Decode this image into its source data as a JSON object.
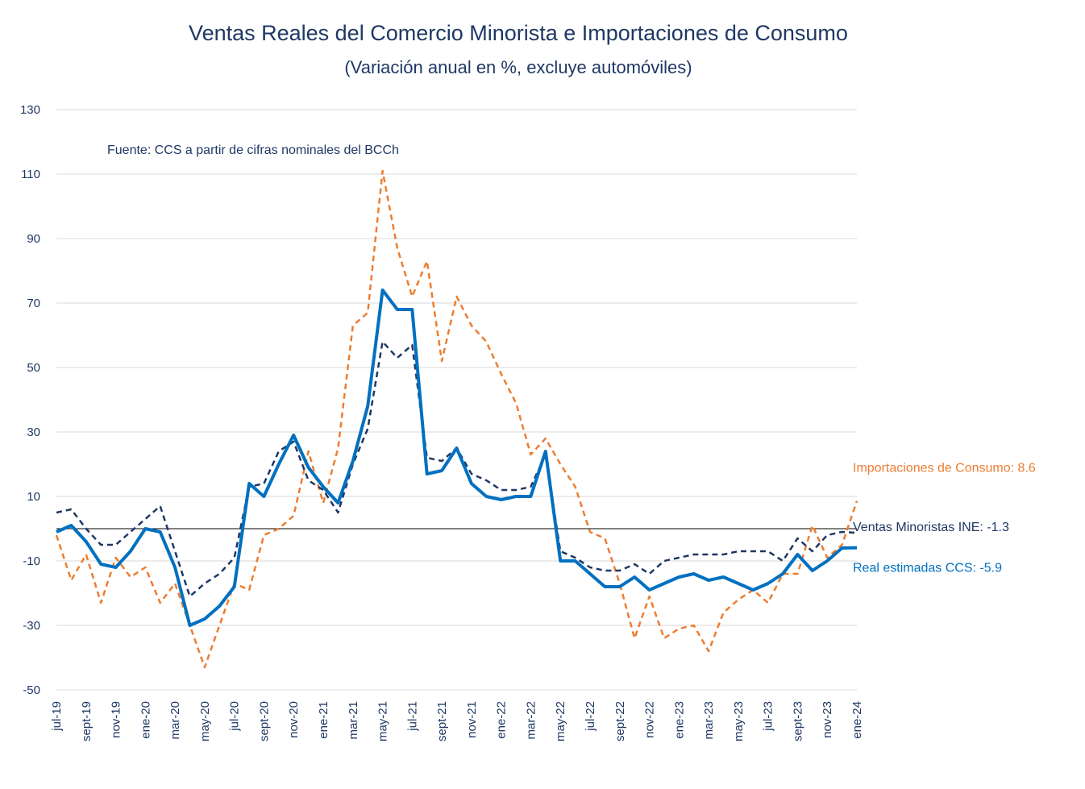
{
  "chart_data": {
    "type": "line",
    "title": "Ventas Reales del Comercio Minorista e Importaciones de Consumo",
    "subtitle": "(Variación anual en %, excluye automóviles)",
    "note": "Fuente: CCS a partir de cifras nominales del BCCh",
    "ylim": [
      -50,
      130
    ],
    "yticks": [
      "130",
      "110",
      "90",
      "70",
      "50",
      "30",
      "10",
      "-10",
      "-30",
      "-50"
    ],
    "ytick_values": [
      130,
      110,
      90,
      70,
      50,
      30,
      10,
      -10,
      -30,
      -50
    ],
    "grid": true,
    "categories": [
      "jul-19",
      "ago-19",
      "sept-19",
      "oct-19",
      "nov-19",
      "dic-19",
      "ene-20",
      "feb-20",
      "mar-20",
      "abr-20",
      "may-20",
      "jun-20",
      "jul-20",
      "ago-20",
      "sept-20",
      "oct-20",
      "nov-20",
      "dic-20",
      "ene-21",
      "feb-21",
      "mar-21",
      "abr-21",
      "may-21",
      "jun-21",
      "jul-21",
      "ago-21",
      "sept-21",
      "oct-21",
      "nov-21",
      "dic-21",
      "ene-22",
      "feb-22",
      "mar-22",
      "abr-22",
      "may-22",
      "jun-22",
      "jul-22",
      "ago-22",
      "sept-22",
      "oct-22",
      "nov-22",
      "dic-22",
      "ene-23",
      "feb-23",
      "mar-23",
      "abr-23",
      "may-23",
      "jun-23",
      "jul-23",
      "ago-23",
      "sept-23",
      "oct-23",
      "nov-23",
      "dic-23",
      "ene-24"
    ],
    "xtick_labels": [
      "jul-19",
      "sept-19",
      "nov-19",
      "ene-20",
      "mar-20",
      "may-20",
      "jul-20",
      "sept-20",
      "nov-20",
      "ene-21",
      "mar-21",
      "may-21",
      "jul-21",
      "sept-21",
      "nov-21",
      "ene-22",
      "mar-22",
      "may-22",
      "jul-22",
      "sept-22",
      "nov-22",
      "ene-23",
      "mar-23",
      "may-23",
      "jul-23",
      "sept-23",
      "nov-23",
      "ene-24"
    ],
    "xtick_indices": [
      0,
      2,
      4,
      6,
      8,
      10,
      12,
      14,
      16,
      18,
      20,
      22,
      24,
      26,
      28,
      30,
      32,
      34,
      36,
      38,
      40,
      42,
      44,
      46,
      48,
      50,
      52,
      54
    ],
    "series": [
      {
        "name": "Importaciones de Consumo",
        "end_label": "Importaciones de Consumo: 8.6",
        "color": "#ed7d31",
        "style": "dashed",
        "values": [
          -2,
          -16,
          -8,
          -23,
          -9,
          -15,
          -12,
          -23,
          -17,
          -30,
          -43,
          -30,
          -17,
          -19,
          -2,
          0,
          4,
          24,
          8,
          25,
          63,
          67,
          111,
          87,
          72,
          83,
          52,
          72,
          63,
          58,
          48,
          39,
          23,
          28,
          20,
          13,
          -1,
          -3,
          -17,
          -34,
          -21,
          -34,
          -31,
          -30,
          -38,
          -26,
          -22,
          -19,
          -23,
          -14,
          -14,
          1,
          -9,
          -5,
          8.6
        ]
      },
      {
        "name": "Ventas Minoristas INE",
        "end_label": "Ventas Minoristas INE: -1.3",
        "color": "#1f3864",
        "style": "dashed",
        "values": [
          5,
          6,
          0,
          -5,
          -5,
          -1,
          3,
          7,
          -7,
          -21,
          -17,
          -14,
          -9,
          13,
          14,
          24,
          27,
          15,
          12,
          5,
          20,
          31,
          58,
          53,
          57,
          22,
          21,
          25,
          17,
          15,
          12,
          12,
          13,
          23,
          -7,
          -9,
          -12,
          -13,
          -13,
          -11,
          -14,
          -10,
          -9,
          -8,
          -8,
          -8,
          -7,
          -7,
          -7,
          -10,
          -3,
          -7,
          -2,
          -1,
          -1.3
        ]
      },
      {
        "name": "Real estimadas CCS",
        "end_label": "Real estimadas CCS: -5.9",
        "color": "#0070c0",
        "style": "solid",
        "values": [
          -1,
          1,
          -4,
          -11,
          -12,
          -7,
          0,
          -1,
          -12,
          -30,
          -28,
          -24,
          -18,
          14,
          10,
          20,
          29,
          19,
          13,
          8,
          21,
          38,
          74,
          68,
          68,
          17,
          18,
          25,
          14,
          10,
          9,
          10,
          10,
          24,
          -10,
          -10,
          -14,
          -18,
          -18,
          -15,
          -19,
          -17,
          -15,
          -14,
          -16,
          -15,
          -17,
          -19,
          -17,
          -14,
          -8,
          -13,
          -10,
          -6,
          -5.9
        ]
      }
    ]
  }
}
